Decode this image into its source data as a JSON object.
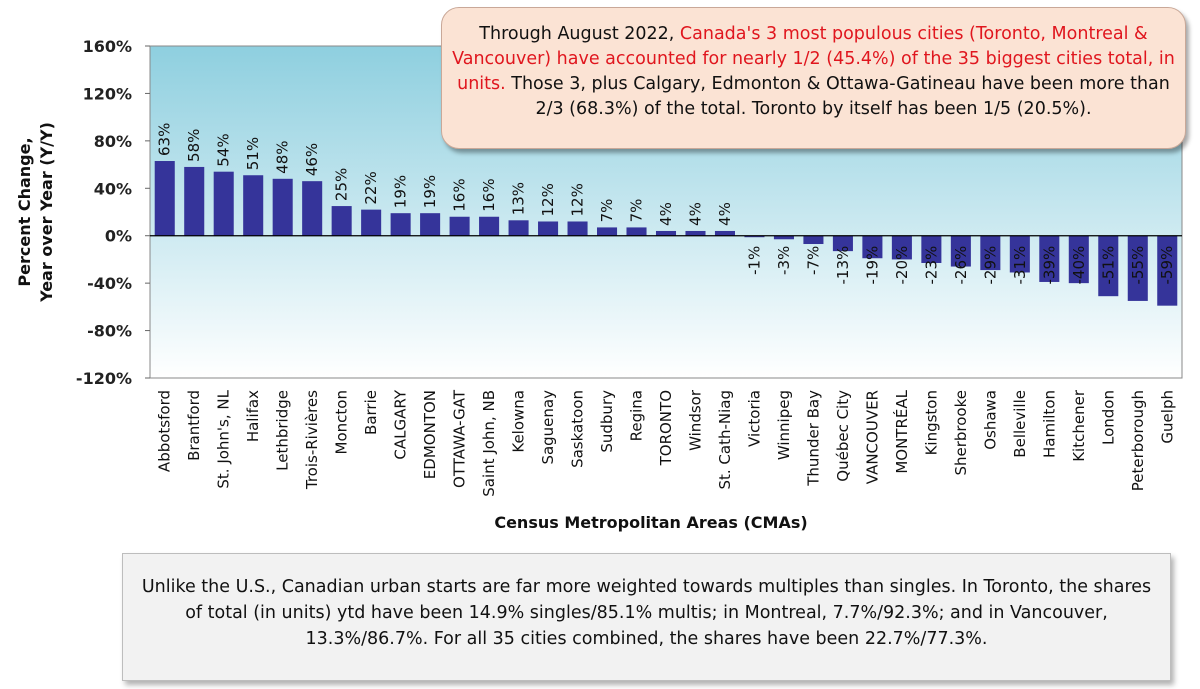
{
  "chart_data": {
    "type": "bar",
    "title": "",
    "xlabel": "Census Metropolitan Areas (CMAs)",
    "ylabel_line1": "Percent Change,",
    "ylabel_line2": "Year over Year (Y/Y)",
    "ylim": [
      -120,
      160
    ],
    "yticks": [
      160,
      120,
      80,
      40,
      0,
      -40,
      -80,
      -120
    ],
    "ytick_labels": [
      "160%",
      "120%",
      "80%",
      "40%",
      "0%",
      "-40%",
      "-80%",
      "-120%"
    ],
    "categories": [
      "Abbotsford",
      "Brantford",
      "St. John's, NL",
      "Halifax",
      "Lethbridge",
      "Trois-Rivières",
      "Moncton",
      "Barrie",
      "CALGARY",
      "EDMONTON",
      "OTTAWA-GAT",
      "Saint John, NB",
      "Kelowna",
      "Saguenay",
      "Saskatoon",
      "Sudbury",
      "Regina",
      "TORONTO",
      "Windsor",
      "St. Cath-Niag",
      "Victoria",
      "Winnipeg",
      "Thunder Bay",
      "Québec City",
      "VANCOUVER",
      "MONTRÉAL",
      "Kingston",
      "Sherbrooke",
      "Oshawa",
      "Belleville",
      "Hamilton",
      "Kitchener",
      "London",
      "Peterborough",
      "Guelph"
    ],
    "values": [
      63,
      58,
      54,
      51,
      48,
      46,
      25,
      22,
      19,
      19,
      16,
      16,
      13,
      12,
      12,
      7,
      7,
      4,
      4,
      4,
      -1,
      -3,
      -7,
      -13,
      -19,
      -20,
      -23,
      -26,
      -29,
      -31,
      -39,
      -40,
      -51,
      -55,
      -59
    ],
    "value_labels": [
      "63%",
      "58%",
      "54%",
      "51%",
      "48%",
      "46%",
      "25%",
      "22%",
      "19%",
      "19%",
      "16%",
      "16%",
      "13%",
      "12%",
      "12%",
      "7%",
      "7%",
      "4%",
      "4%",
      "4%",
      "-1%",
      "-3%",
      "-7%",
      "-13%",
      "-19%",
      "-20%",
      "-23%",
      "-26%",
      "-29%",
      "-31%",
      "-39%",
      "-40%",
      "-51%",
      "-55%",
      "-59%"
    ],
    "bar_color": "#35349a",
    "plot_bg_top": "#8ecfdf",
    "plot_bg_bottom": "#ffffff"
  },
  "callout": {
    "part1": "Through August 2022, ",
    "highlight": "Canada's 3 most populous cities (Toronto, Montreal & Vancouver) have accounted for nearly 1/2 (45.4%) of the 35 biggest cities total, in units.",
    "part2": " Those 3, plus Calgary, Edmonton & Ottawa-Gatineau have been more than 2/3 (68.3%) of the total. Toronto by itself has been 1/5 (20.5%).",
    "highlight_color": "#e0161e"
  },
  "note": {
    "text": "Unlike the U.S., Canadian urban starts are far more weighted towards multiples than singles. In Toronto, the shares of total (in units) ytd have been 14.9% singles/85.1% multis; in Montreal, 7.7%/92.3%; and in Vancouver, 13.3%/86.7%. For all 35 cities combined, the shares have been 22.7%/77.3%."
  }
}
